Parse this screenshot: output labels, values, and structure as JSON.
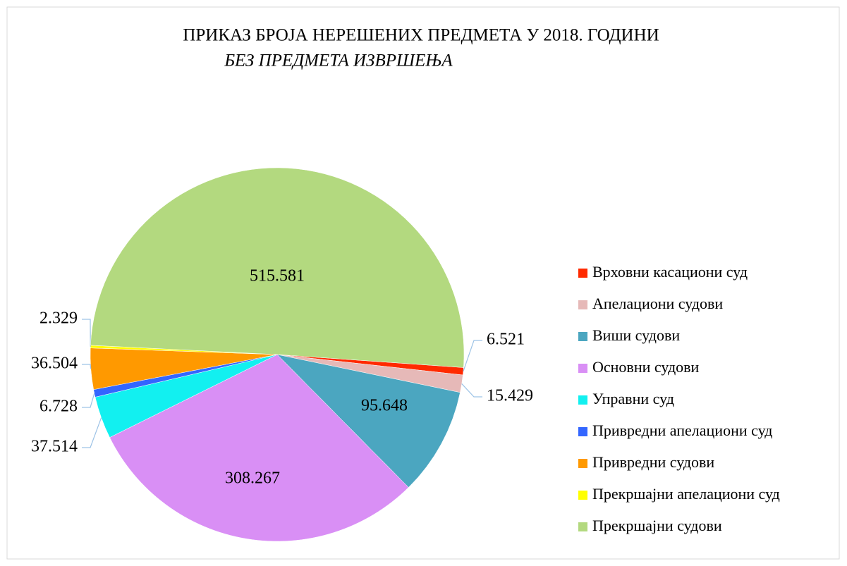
{
  "chart_data": {
    "type": "pie",
    "title": "ПРИКАЗ БРОЈА НЕРЕШЕНИХ ПРЕДМЕТА У 2018. ГОДИНИ",
    "subtitle": "БЕЗ ПРЕДМЕТА ИЗВРШЕЊА",
    "categories": [
      "Врховни касациони суд",
      "Апелациони судови",
      "Виши судови",
      "Основни судови",
      "Управни суд",
      "Привредни апелациони суд",
      "Привредни судови",
      "Прекршајни апелациони суд",
      "Прекршајни судови"
    ],
    "values": [
      6521,
      15429,
      95648,
      308267,
      37514,
      6728,
      36504,
      2329,
      515581
    ],
    "value_labels": [
      "6.521",
      "15.429",
      "95.648",
      "308.267",
      "37.514",
      "6.728",
      "36.504",
      "2.329",
      "515.581"
    ],
    "colors": [
      "#ff2a00",
      "#e6b9b8",
      "#4ba6c0",
      "#d98ff5",
      "#12f0f0",
      "#3366ff",
      "#ff9900",
      "#ffff00",
      "#b3d97f"
    ],
    "legend": "right"
  }
}
